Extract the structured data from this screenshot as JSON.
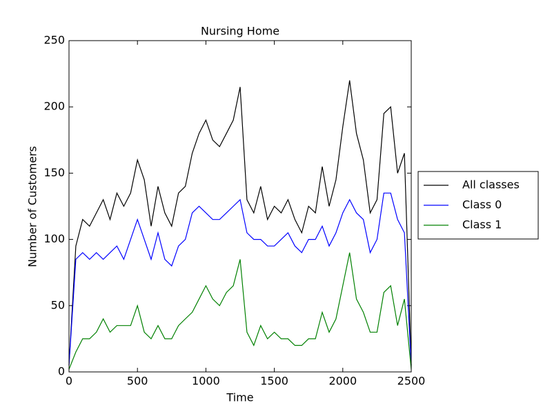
{
  "chart_data": {
    "type": "line",
    "title": "Nursing Home",
    "xlabel": "Time",
    "ylabel": "Number of Customers",
    "x": [
      0,
      50,
      100,
      150,
      200,
      250,
      300,
      350,
      400,
      450,
      500,
      550,
      600,
      650,
      700,
      750,
      800,
      850,
      900,
      950,
      1000,
      1050,
      1100,
      1150,
      1200,
      1250,
      1300,
      1350,
      1400,
      1450,
      1500,
      1550,
      1600,
      1650,
      1700,
      1750,
      1800,
      1850,
      1900,
      1950,
      2000,
      2050,
      2100,
      2150,
      2200,
      2250,
      2300,
      2350,
      2400,
      2450,
      2500
    ],
    "series": [
      {
        "name": "All classes",
        "color": "#000000",
        "values": [
          5,
          95,
          115,
          110,
          120,
          130,
          115,
          135,
          125,
          135,
          160,
          145,
          110,
          140,
          120,
          110,
          135,
          140,
          165,
          180,
          190,
          175,
          170,
          180,
          190,
          215,
          130,
          120,
          140,
          115,
          125,
          120,
          130,
          115,
          105,
          125,
          120,
          155,
          125,
          145,
          185,
          220,
          180,
          160,
          120,
          130,
          195,
          200,
          150,
          165,
          5
        ]
      },
      {
        "name": "Class 0",
        "color": "#0000ff",
        "values": [
          5,
          85,
          90,
          85,
          90,
          85,
          90,
          95,
          85,
          100,
          115,
          100,
          85,
          105,
          85,
          80,
          95,
          100,
          120,
          125,
          120,
          115,
          115,
          120,
          125,
          130,
          105,
          100,
          100,
          95,
          95,
          100,
          105,
          95,
          90,
          100,
          100,
          110,
          95,
          105,
          120,
          130,
          120,
          115,
          90,
          100,
          135,
          135,
          115,
          105,
          5
        ]
      },
      {
        "name": "Class 1",
        "color": "#008000",
        "values": [
          2,
          15,
          25,
          25,
          30,
          40,
          30,
          35,
          35,
          35,
          50,
          30,
          25,
          35,
          25,
          25,
          35,
          40,
          45,
          55,
          65,
          55,
          50,
          60,
          65,
          85,
          30,
          20,
          35,
          25,
          30,
          25,
          25,
          20,
          20,
          25,
          25,
          45,
          30,
          40,
          65,
          90,
          55,
          45,
          30,
          30,
          60,
          65,
          35,
          55,
          2
        ]
      }
    ],
    "xlim": [
      0,
      2500
    ],
    "xticks": [
      0,
      500,
      1000,
      1500,
      2000,
      2500
    ],
    "ylim": [
      0,
      250
    ],
    "yticks": [
      0,
      50,
      100,
      150,
      200,
      250
    ],
    "grid": false,
    "legend": "outside right"
  }
}
